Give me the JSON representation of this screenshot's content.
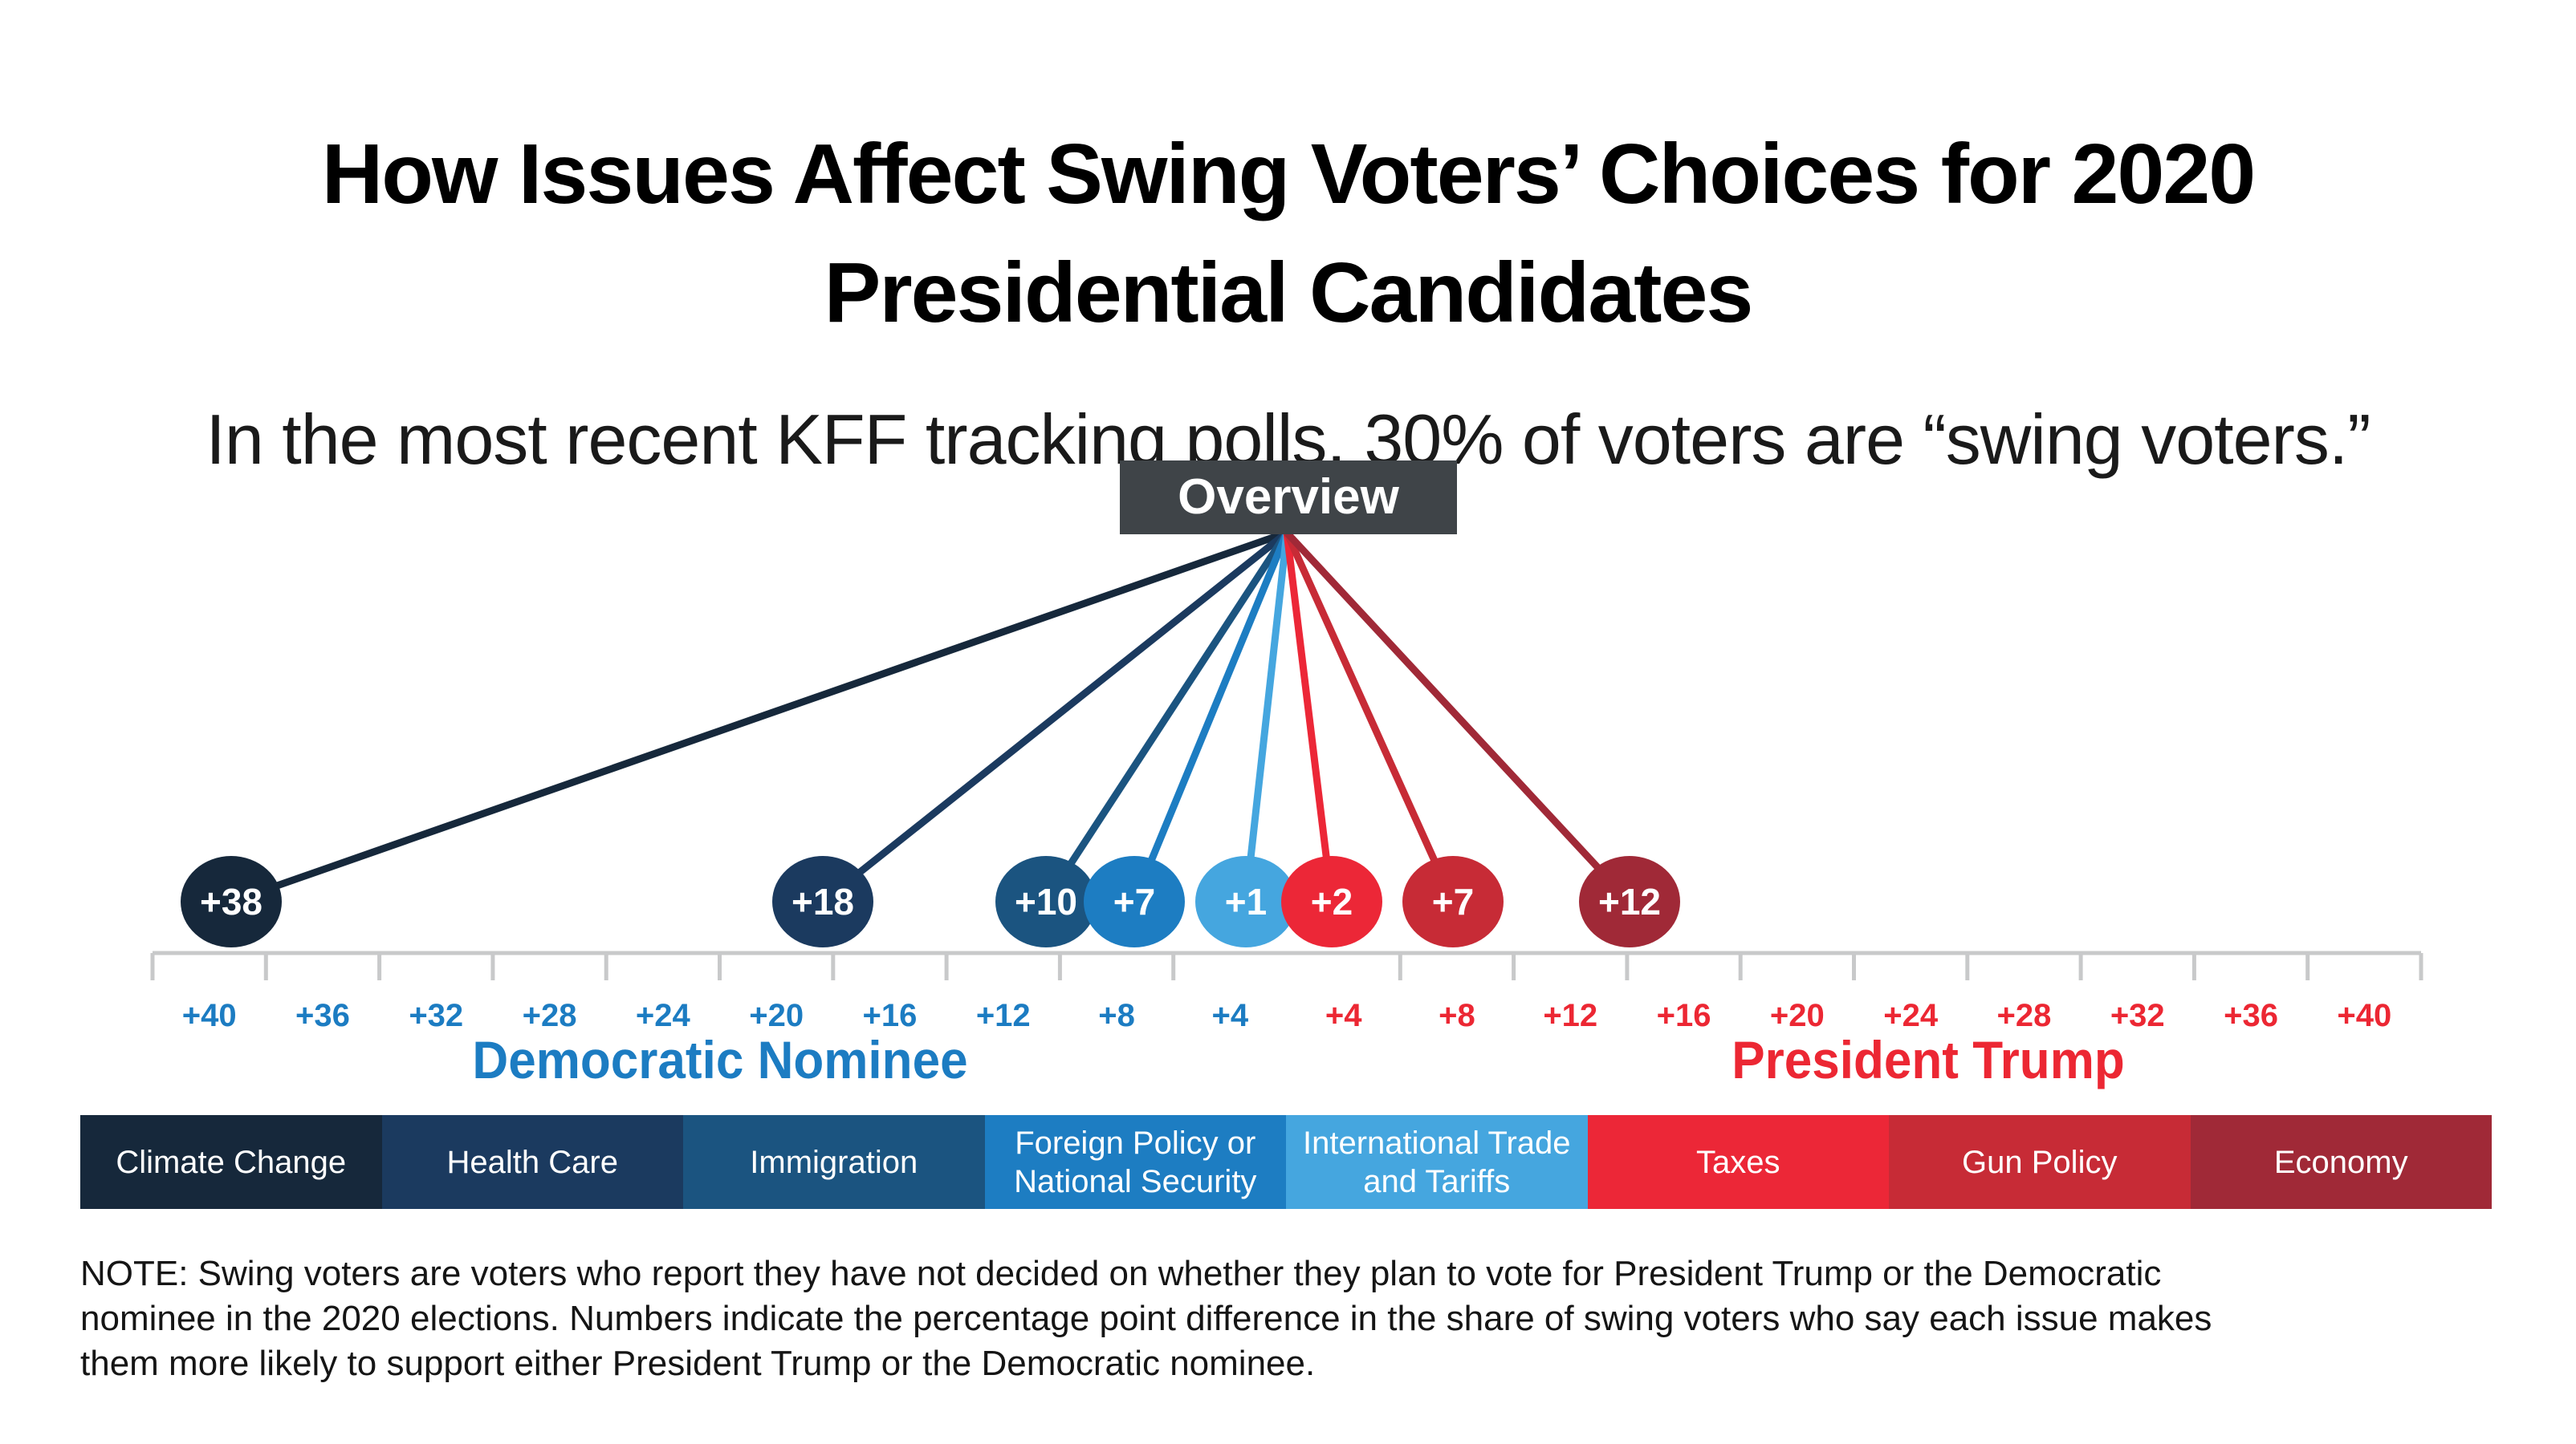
{
  "title": {
    "line1": "How Issues Affect Swing Voters’ Choices for 2020",
    "line2": "Presidential Candidates"
  },
  "subtitle": "In the most recent KFF tracking polls, 30% of voters are “swing voters.”",
  "overview_label": "Overview",
  "chart_data": {
    "type": "scatter",
    "description": "Dot number-line chart: each issue is a circle placed on a horizontal axis showing the percentage-point margin by which swing voters say the issue makes them more likely to support the Democratic nominee (left, blue) or President Trump (right, red).",
    "axis": {
      "left_labels": [
        "+40",
        "+36",
        "+32",
        "+28",
        "+24",
        "+20",
        "+16",
        "+12",
        "+8",
        "+4"
      ],
      "right_labels": [
        "+4",
        "+8",
        "+12",
        "+16",
        "+20",
        "+24",
        "+28",
        "+32",
        "+36",
        "+40"
      ],
      "left_group": "Democratic Nominee",
      "right_group": "President Trump",
      "left_color": "#1C7CC2",
      "right_color": "#EC2733",
      "axis_color": "#C8C9CA",
      "xlim_left_max": 40,
      "xlim_right_max": 40,
      "unit": "percentage points"
    },
    "series": [
      {
        "issue": "Climate Change",
        "side": "Democratic Nominee",
        "value": 38,
        "value_label": "+38",
        "color": "#16283B"
      },
      {
        "issue": "Health Care",
        "side": "Democratic Nominee",
        "value": 18,
        "value_label": "+18",
        "color": "#1B3A5F"
      },
      {
        "issue": "Immigration",
        "side": "Democratic Nominee",
        "value": 10,
        "value_label": "+10",
        "color": "#1B5480"
      },
      {
        "issue": "Foreign Policy or National Security",
        "side": "Democratic Nominee",
        "value": 7,
        "value_label": "+7",
        "color": "#1D7DC2"
      },
      {
        "issue": "International Trade and Tariffs",
        "side": "Democratic Nominee",
        "value": 1,
        "value_label": "+1",
        "color": "#45A6DF"
      },
      {
        "issue": "Taxes",
        "side": "President Trump",
        "value": 2,
        "value_label": "+2",
        "color": "#EC2737"
      },
      {
        "issue": "Gun Policy",
        "side": "President Trump",
        "value": 7,
        "value_label": "+7",
        "color": "#C72B36"
      },
      {
        "issue": "Economy",
        "side": "President Trump",
        "value": 12,
        "value_label": "+12",
        "color": "#A02937"
      }
    ],
    "overview_box_color": "#3F4448",
    "legend_position": "bottom",
    "grid": false
  },
  "note_lines": [
    "NOTE: Swing voters are voters who report they have not decided on whether they plan to vote for President Trump or the Democratic",
    "nominee in the 2020 elections. Numbers indicate the percentage point difference in the share of swing voters who say each issue makes",
    "them more likely to support either President Trump or the Democratic nominee."
  ]
}
